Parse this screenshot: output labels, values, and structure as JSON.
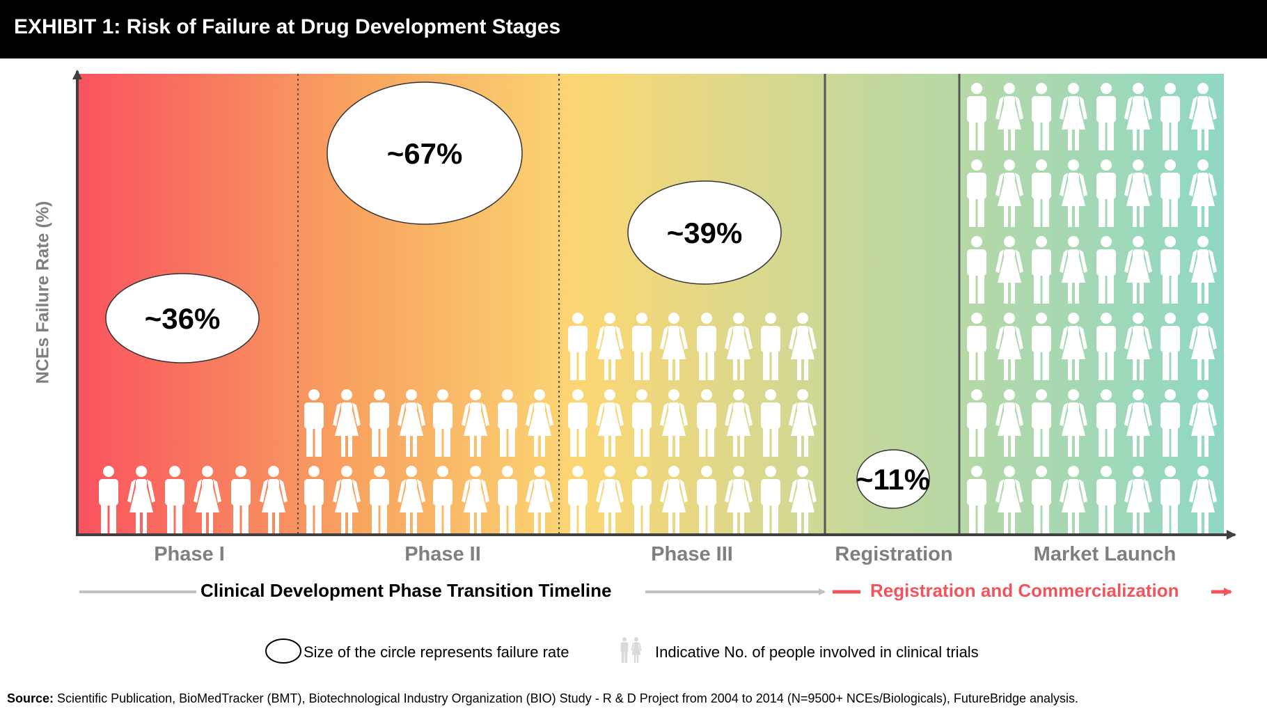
{
  "header": {
    "title": "EXHIBIT 1: Risk of Failure at Drug Development Stages"
  },
  "chart_data": {
    "type": "bar",
    "ylabel": "NCEs Failure Rate (%)",
    "categories": [
      "Phase I",
      "Phase II",
      "Phase III",
      "Registration",
      "Market Launch"
    ],
    "values": [
      36,
      67,
      39,
      11,
      null
    ],
    "value_labels": [
      "~36%",
      "~67%",
      "~39%",
      "~11%",
      ""
    ],
    "people_rows": [
      1,
      2,
      3,
      0,
      6
    ],
    "grid": false
  },
  "timeline": {
    "clinical": "Clinical Development Phase Transition Timeline",
    "registration": "Registration and Commercialization"
  },
  "legend": {
    "circle": "Size of the circle represents failure rate",
    "people": "Indicative No. of people involved in clinical trials"
  },
  "source": {
    "label": "Source:",
    "text": "Scientific Publication, BioMedTracker (BMT), Biotechnological Industry Organization (BIO) Study - R & D Project from 2004 to 2014 (N=9500+ NCEs/Biologicals), FutureBridge analysis."
  },
  "colors": {
    "gradient": [
      "#f9535f",
      "#f8a35f",
      "#fbd774",
      "#c2d89e",
      "#8fd8c4"
    ],
    "accent": "#f2545b",
    "axis": "#404040",
    "label_gray": "#7f7f7f"
  }
}
